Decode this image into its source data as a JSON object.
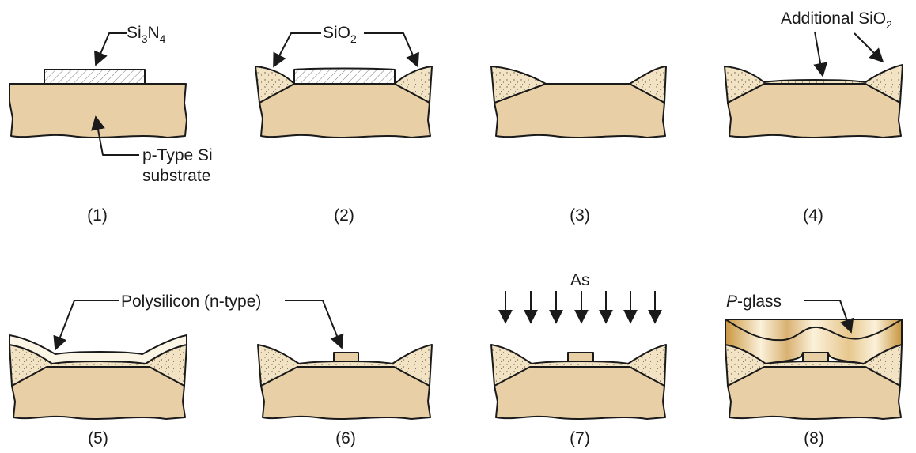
{
  "labels": {
    "si3n4": {
      "base1": "Si",
      "sub1": "3",
      "base2": "N",
      "sub2": "4"
    },
    "sio2": {
      "base": "SiO",
      "sub": "2"
    },
    "additional_sio2": {
      "base": "Additional SiO",
      "sub": "2"
    },
    "substrate_line1": "p-Type Si",
    "substrate_line2": "substrate",
    "polysilicon": "Polysilicon (n-type)",
    "as": "As",
    "pglass_italic": "P",
    "pglass_rest": "-glass"
  },
  "captions": [
    "(1)",
    "(2)",
    "(3)",
    "(4)",
    "(5)",
    "(6)",
    "(7)",
    "(8)"
  ],
  "colors": {
    "substrate": "#e8cfa6",
    "oxide": "#f1e3c4",
    "poly": "#fbf5e6",
    "pglass_light": "#fbf1da",
    "pglass_dark": "#c9963f",
    "outline": "#1a1a1a"
  }
}
